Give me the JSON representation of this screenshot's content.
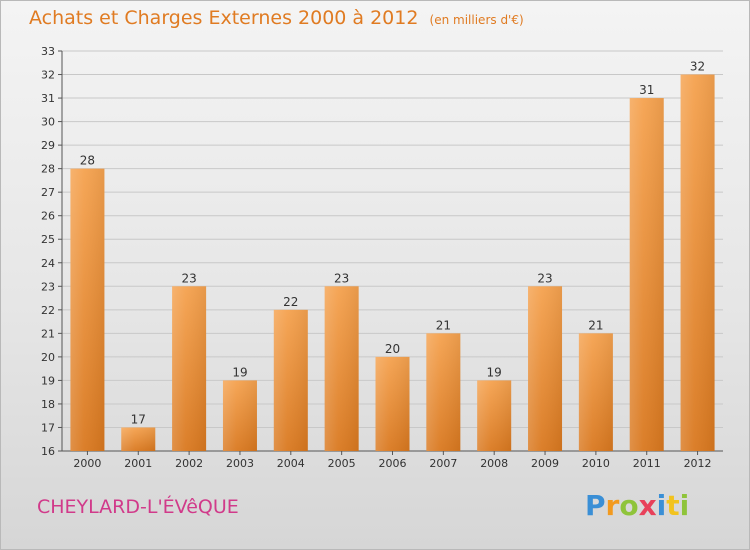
{
  "header": {
    "title": "Achats et Charges Externes 2000 à 2012",
    "unit": "(en milliers d'€)"
  },
  "footer": {
    "place": "CHEYLARD-L'ÉVêQUE",
    "brand_letters": [
      {
        "ch": "P",
        "color": "#3a8fd6"
      },
      {
        "ch": "r",
        "color": "#f29a1f"
      },
      {
        "ch": "o",
        "color": "#8fc43a"
      },
      {
        "ch": "x",
        "color": "#e8415a"
      },
      {
        "ch": "i",
        "color": "#3a8fd6"
      },
      {
        "ch": "t",
        "color": "#f2c31f"
      },
      {
        "ch": "i",
        "color": "#8fc43a"
      }
    ]
  },
  "chart_data": {
    "type": "bar",
    "title": "Achats et Charges Externes 2000 à 2012",
    "subtitle": "(en milliers d'€)",
    "xlabel": "",
    "ylabel": "",
    "categories": [
      "2000",
      "2001",
      "2002",
      "2003",
      "2004",
      "2005",
      "2006",
      "2007",
      "2008",
      "2009",
      "2010",
      "2011",
      "2012"
    ],
    "values": [
      28,
      17,
      23,
      19,
      22,
      23,
      20,
      21,
      19,
      23,
      21,
      31,
      32
    ],
    "ylim": [
      16,
      33
    ],
    "yticks": [
      16,
      17,
      18,
      19,
      20,
      21,
      22,
      23,
      24,
      25,
      26,
      27,
      28,
      29,
      30,
      31,
      32,
      33
    ],
    "grid": true,
    "bar_color_top": "#f5a24f",
    "bar_color_bottom": "#d9781f",
    "label_color": "#333333",
    "axis_color": "#555555"
  }
}
